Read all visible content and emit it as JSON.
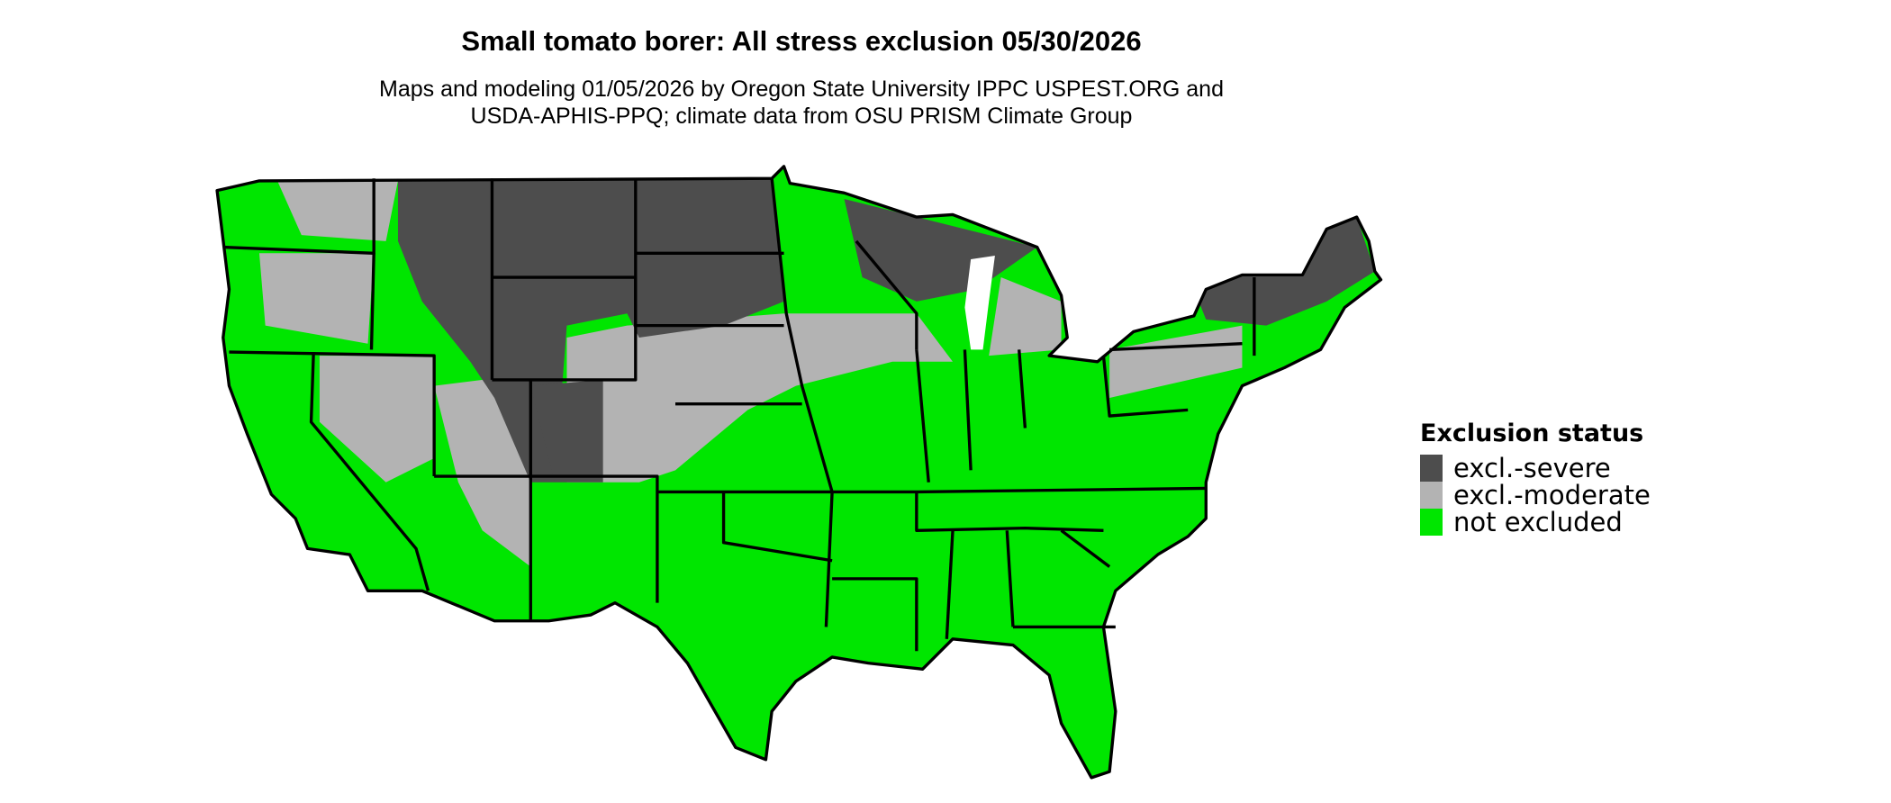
{
  "title": "Small tomato borer: All stress exclusion 05/30/2026",
  "subtitle_line1": "Maps and modeling 01/05/2026 by Oregon State University IPPC USPEST.ORG and",
  "subtitle_line2": "USDA-APHIS-PPQ; climate data from OSU PRISM Climate Group",
  "map": {
    "region": "Contiguous United States",
    "state_borders": true
  },
  "legend": {
    "title": "Exclusion status",
    "items": [
      {
        "label": "excl.-severe",
        "color": "#4d4d4d"
      },
      {
        "label": "excl.-moderate",
        "color": "#b3b3b3"
      },
      {
        "label": "not excluded",
        "color": "#00e600"
      }
    ]
  }
}
